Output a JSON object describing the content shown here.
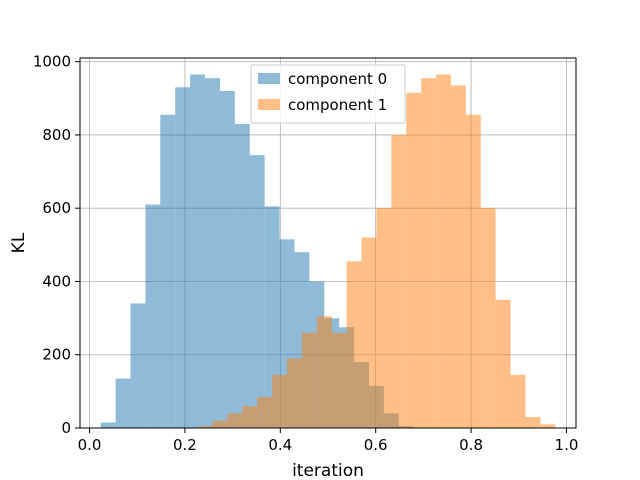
{
  "chart_data": {
    "type": "bar",
    "xlabel": "iteration",
    "ylabel": "KL",
    "xlim": [
      -0.02,
      1.02
    ],
    "ylim": [
      0,
      1010
    ],
    "bin_width": 0.03125,
    "grid": true,
    "legend_placement": "top-center",
    "xticks": [
      0.0,
      0.2,
      0.4,
      0.6,
      0.8,
      1.0
    ],
    "xtick_labels": [
      "0.0",
      "0.2",
      "0.4",
      "0.6",
      "0.8",
      "1.0"
    ],
    "yticks": [
      0,
      200,
      400,
      600,
      800,
      1000
    ],
    "ytick_labels": [
      "0",
      "200",
      "400",
      "600",
      "800",
      "1000"
    ],
    "series": [
      {
        "name": "component 0",
        "color": "#1f77b4",
        "opacity": 0.5,
        "bin_starts": [
          0.0234,
          0.0547,
          0.0859,
          0.1172,
          0.1484,
          0.1797,
          0.2109,
          0.2422,
          0.2734,
          0.3047,
          0.3359,
          0.3672,
          0.3984,
          0.4297,
          0.4609,
          0.4922,
          0.5234,
          0.5547,
          0.5859,
          0.6172,
          0.6484
        ],
        "values": [
          15,
          135,
          340,
          610,
          855,
          930,
          965,
          955,
          920,
          830,
          745,
          605,
          515,
          480,
          400,
          300,
          275,
          180,
          115,
          40,
          5
        ]
      },
      {
        "name": "component 1",
        "color": "#ff7f0e",
        "opacity": 0.5,
        "bin_starts": [
          0.2266,
          0.2578,
          0.2891,
          0.3203,
          0.3516,
          0.3828,
          0.4141,
          0.4453,
          0.4766,
          0.5078,
          0.5391,
          0.5703,
          0.6016,
          0.6328,
          0.6641,
          0.6953,
          0.7266,
          0.7578,
          0.7891,
          0.8203,
          0.8516,
          0.8828,
          0.9141,
          0.9453
        ],
        "values": [
          5,
          20,
          40,
          60,
          85,
          145,
          190,
          260,
          305,
          260,
          455,
          520,
          600,
          800,
          915,
          955,
          965,
          935,
          855,
          600,
          350,
          145,
          30,
          10
        ]
      }
    ]
  }
}
